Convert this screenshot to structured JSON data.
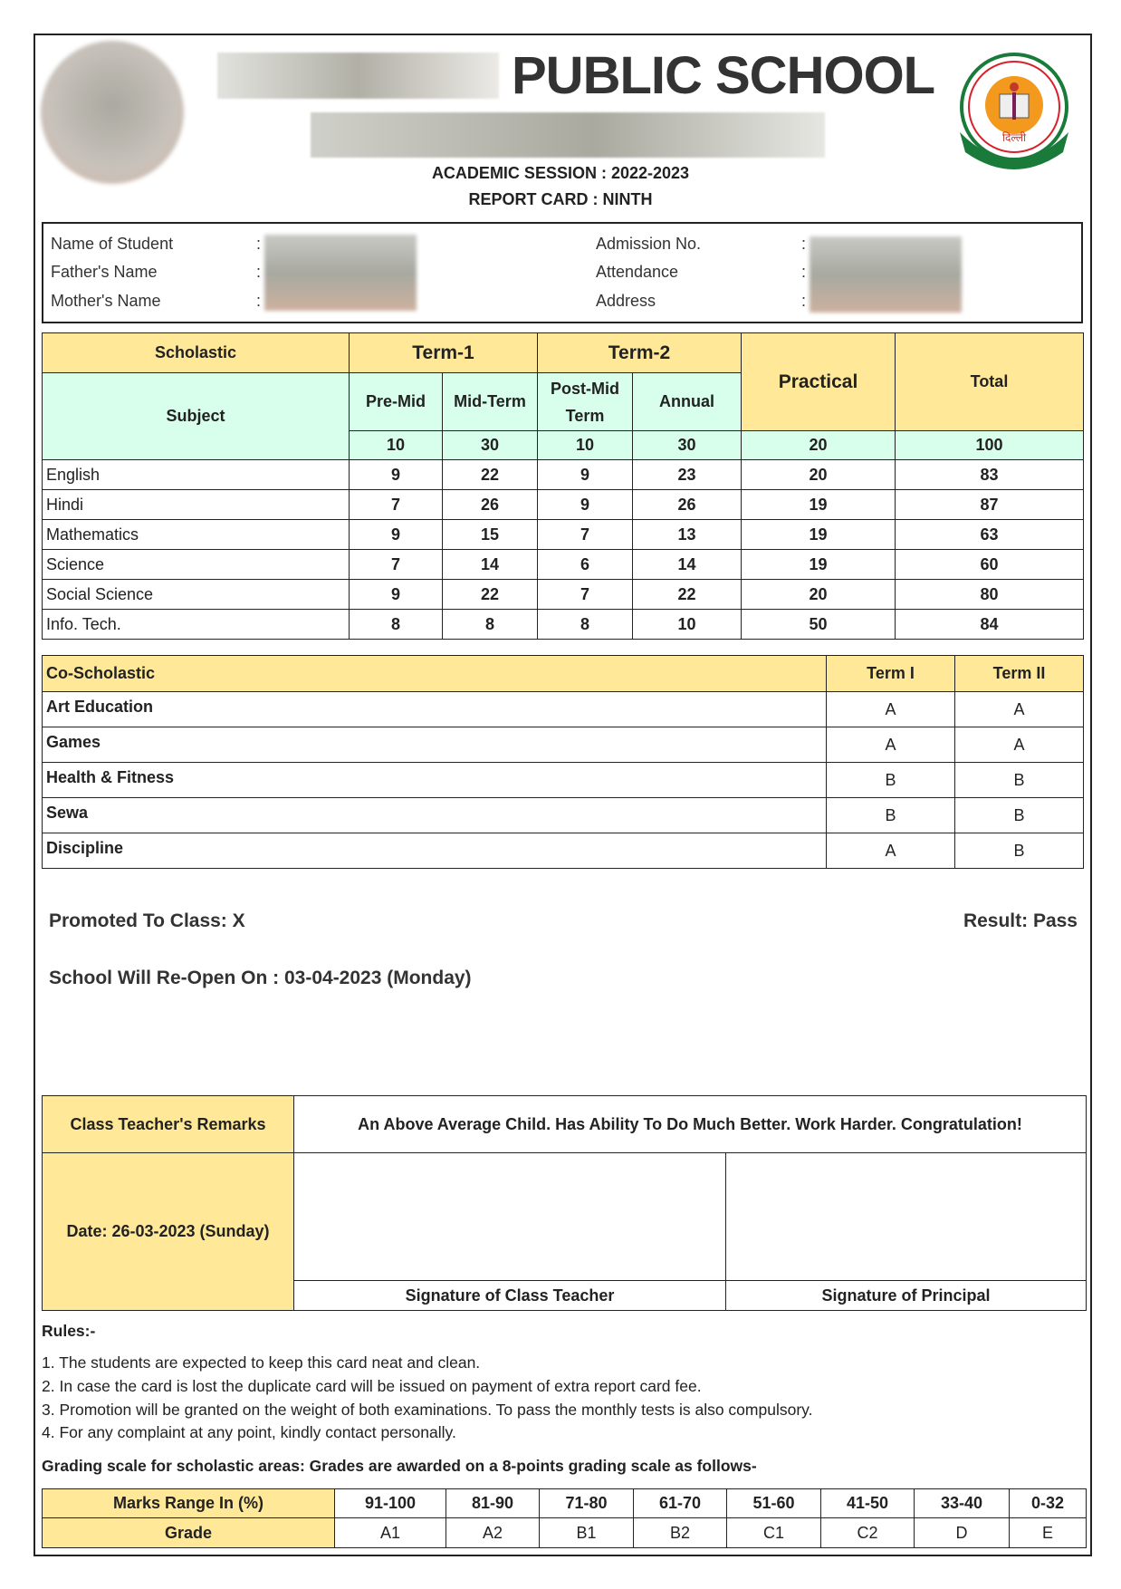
{
  "header": {
    "school_name": "PUBLIC SCHOOL",
    "session": "ACADEMIC SESSION : 2022-2023",
    "report_card": "REPORT CARD : NINTH",
    "logo_text": "केन्द्रीय माध्यमिक शिक्षा बोर्ड दिल्ली असतो मा सद्गमय"
  },
  "student_info": {
    "labels": [
      "Name of Student",
      "Father's Name",
      "Mother's Name",
      "Admission No.",
      "Attendance",
      "Address"
    ],
    "separator": ":"
  },
  "scholastic": {
    "header": {
      "scholastic": "Scholastic",
      "term1": "Term-1",
      "term2": "Term-2",
      "practical": "Practical",
      "total": "Total",
      "subject": "Subject",
      "pre_mid": "Pre-Mid",
      "mid_term": "Mid-Term",
      "post_mid": "Post-Mid Term",
      "annual": "Annual"
    },
    "max_marks": [
      "10",
      "30",
      "10",
      "30",
      "20",
      "100"
    ],
    "rows": [
      {
        "subject": "English",
        "pre_mid": "9",
        "mid_term": "22",
        "post_mid": "9",
        "annual": "23",
        "practical": "20",
        "total": "83"
      },
      {
        "subject": "Hindi",
        "pre_mid": "7",
        "mid_term": "26",
        "post_mid": "9",
        "annual": "26",
        "practical": "19",
        "total": "87"
      },
      {
        "subject": "Mathematics",
        "pre_mid": "9",
        "mid_term": "15",
        "post_mid": "7",
        "annual": "13",
        "practical": "19",
        "total": "63"
      },
      {
        "subject": "Science",
        "pre_mid": "7",
        "mid_term": "14",
        "post_mid": "6",
        "annual": "14",
        "practical": "19",
        "total": "60"
      },
      {
        "subject": "Social Science",
        "pre_mid": "9",
        "mid_term": "22",
        "post_mid": "7",
        "annual": "22",
        "practical": "20",
        "total": "80"
      },
      {
        "subject": "Info. Tech.",
        "pre_mid": "8",
        "mid_term": "8",
        "post_mid": "8",
        "annual": "10",
        "practical": "50",
        "total": "84"
      }
    ]
  },
  "co_scholastic": {
    "header": {
      "title": "Co-Scholastic",
      "term1": "Term I",
      "term2": "Term II"
    },
    "rows": [
      {
        "area": "Art Education",
        "term1": "A",
        "term2": "A"
      },
      {
        "area": "Games",
        "term1": "A",
        "term2": "A"
      },
      {
        "area": "Health & Fitness",
        "term1": "B",
        "term2": "B"
      },
      {
        "area": "Sewa",
        "term1": "B",
        "term2": "B"
      },
      {
        "area": "Discipline",
        "term1": "A",
        "term2": "B"
      }
    ]
  },
  "result": {
    "promoted": "Promoted To Class: X",
    "result": "Result: Pass",
    "reopen": "School Will Re-Open On : 03-04-2023 (Monday)"
  },
  "remarks": {
    "label": "Class Teacher's Remarks",
    "text": "An Above Average Child. Has Ability To Do Much Better. Work Harder. Congratulation!",
    "date": "Date: 26-03-2023 (Sunday)",
    "sig_teacher": "Signature of Class Teacher",
    "sig_principal": "Signature of Principal"
  },
  "rules": {
    "title": "Rules:-",
    "items": [
      "1. The students are expected to keep this card neat and clean.",
      "2. In case the card is lost the duplicate card will be issued on payment of extra report card fee.",
      "3. Promotion will be granted on the weight of both examinations. To pass the monthly tests is also compulsory.",
      "4. For any complaint at any point, kindly contact personally."
    ],
    "grading_title": "Grading scale for scholastic areas: Grades are awarded on a 8-points grading scale as follows-"
  },
  "grading": {
    "range_label": "Marks Range In (%)",
    "grade_label": "Grade",
    "ranges": [
      "91-100",
      "81-90",
      "71-80",
      "61-70",
      "51-60",
      "41-50",
      "33-40",
      "0-32"
    ],
    "grades": [
      "A1",
      "A2",
      "B1",
      "B2",
      "C1",
      "C2",
      "D",
      "E"
    ]
  },
  "colors": {
    "header_yellow": "#FFE999",
    "header_mint": "#D8FFEC"
  }
}
